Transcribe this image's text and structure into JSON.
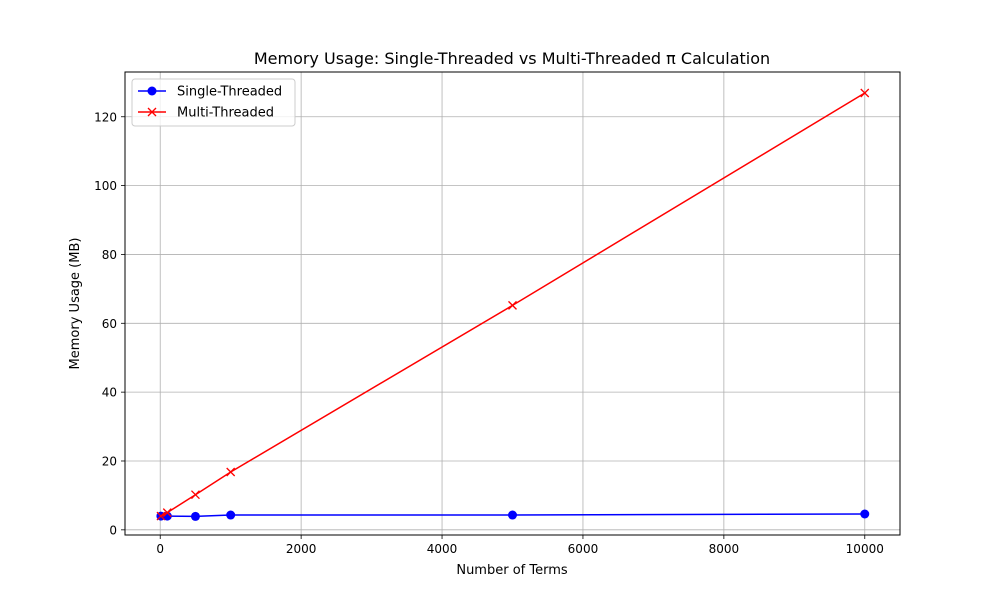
{
  "chart_data": {
    "type": "line",
    "title": "Memory Usage: Single-Threaded vs Multi-Threaded π Calculation",
    "xlabel": "Number of Terms",
    "ylabel": "Memory Usage (MB)",
    "xlim": [
      -500,
      10500
    ],
    "ylim": [
      -1.5,
      133
    ],
    "xticks": [
      0,
      2000,
      4000,
      6000,
      8000,
      10000
    ],
    "xtick_labels": [
      "0",
      "2000",
      "4000",
      "6000",
      "8000",
      "10000"
    ],
    "yticks": [
      0,
      20,
      40,
      60,
      80,
      100,
      120
    ],
    "ytick_labels": [
      "0",
      "20",
      "40",
      "60",
      "80",
      "100",
      "120"
    ],
    "grid": true,
    "legend_position": "top-left",
    "series": [
      {
        "name": "Single-Threaded",
        "color": "#0000ff",
        "marker": "circle",
        "x": [
          10,
          100,
          500,
          1000,
          5000,
          10000
        ],
        "y": [
          4.0,
          4.0,
          3.9,
          4.3,
          4.3,
          4.6
        ]
      },
      {
        "name": "Multi-Threaded",
        "color": "#ff0000",
        "marker": "x",
        "x": [
          10,
          100,
          500,
          1000,
          5000,
          10000
        ],
        "y": [
          4.0,
          5.0,
          10.2,
          16.8,
          65.2,
          126.9
        ]
      }
    ]
  }
}
